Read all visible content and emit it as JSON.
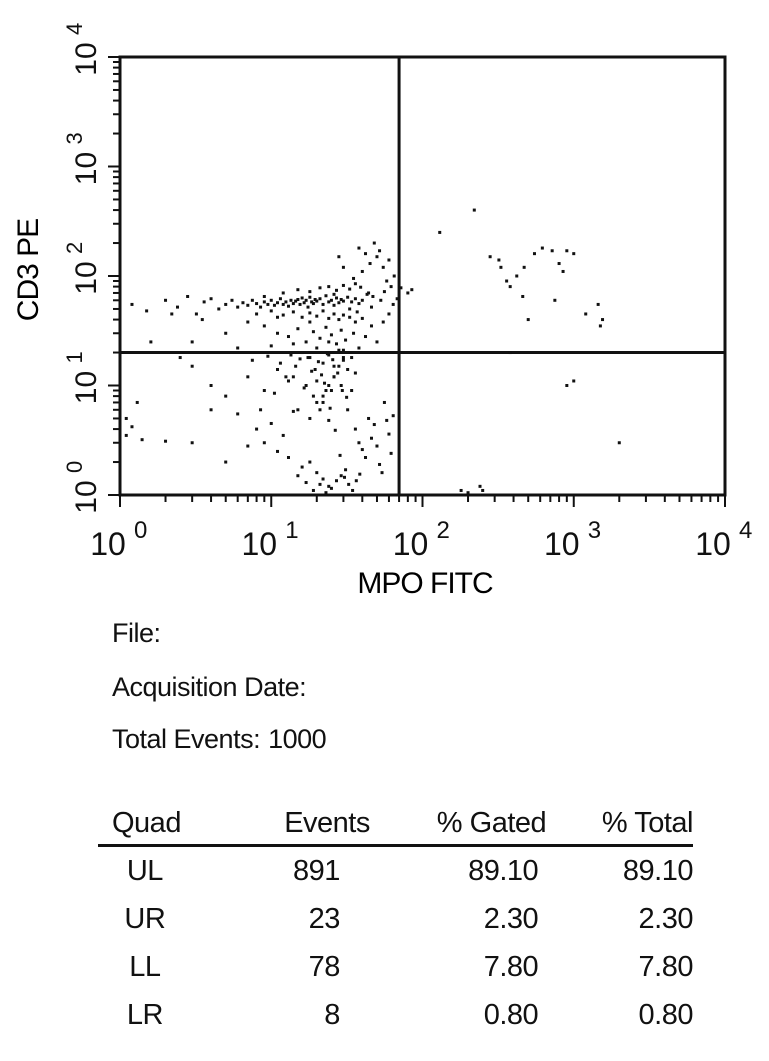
{
  "chart_data": {
    "type": "scatter",
    "xlabel": "MPO FITC",
    "ylabel": "CD3 PE",
    "x_scale": "log",
    "y_scale": "log",
    "xlim": [
      1,
      10000
    ],
    "ylim": [
      1,
      10000
    ],
    "x_ticks": [
      {
        "base": "10",
        "exp": "0"
      },
      {
        "base": "10",
        "exp": "1"
      },
      {
        "base": "10",
        "exp": "2"
      },
      {
        "base": "10",
        "exp": "3"
      },
      {
        "base": "10",
        "exp": "4"
      }
    ],
    "y_ticks": [
      {
        "base": "10",
        "exp": "0"
      },
      {
        "base": "10",
        "exp": "1"
      },
      {
        "base": "10",
        "exp": "2"
      },
      {
        "base": "10",
        "exp": "3"
      },
      {
        "base": "10",
        "exp": "4"
      }
    ],
    "quadrant_x": 70,
    "quadrant_y": 20,
    "series": [
      {
        "points": [
          [
            1.2,
            55
          ],
          [
            1.5,
            48
          ],
          [
            2,
            60
          ],
          [
            2.4,
            52
          ],
          [
            2.8,
            65
          ],
          [
            3.2,
            45
          ],
          [
            3.6,
            58
          ],
          [
            4,
            62
          ],
          [
            4.5,
            50
          ],
          [
            5,
            55
          ],
          [
            5.5,
            60
          ],
          [
            6,
            52
          ],
          [
            6.5,
            57
          ],
          [
            7,
            54
          ],
          [
            7.5,
            60
          ],
          [
            8,
            56
          ],
          [
            8.5,
            52
          ],
          [
            9,
            58
          ],
          [
            9.5,
            55
          ],
          [
            10,
            60
          ],
          [
            10.5,
            54
          ],
          [
            11,
            57
          ],
          [
            11.5,
            62
          ],
          [
            12,
            55
          ],
          [
            12.5,
            58
          ],
          [
            13,
            53
          ],
          [
            13.5,
            60
          ],
          [
            14,
            56
          ],
          [
            14.5,
            59
          ],
          [
            15,
            61
          ],
          [
            15.5,
            55
          ],
          [
            16,
            63
          ],
          [
            16.5,
            57
          ],
          [
            17,
            60
          ],
          [
            17.5,
            52
          ],
          [
            18,
            64
          ],
          [
            18.5,
            58
          ],
          [
            19,
            56
          ],
          [
            19.5,
            61
          ],
          [
            20,
            59
          ],
          [
            21,
            62
          ],
          [
            22,
            55
          ],
          [
            23,
            66
          ],
          [
            24,
            58
          ],
          [
            25,
            60
          ],
          [
            26,
            54
          ],
          [
            27,
            63
          ],
          [
            28,
            57
          ],
          [
            29,
            61
          ],
          [
            30,
            59
          ],
          [
            32,
            64
          ],
          [
            34,
            58
          ],
          [
            36,
            62
          ],
          [
            38,
            56
          ],
          [
            40,
            60
          ],
          [
            8,
            45
          ],
          [
            10,
            48
          ],
          [
            12,
            44
          ],
          [
            14,
            47
          ],
          [
            16,
            42
          ],
          [
            18,
            46
          ],
          [
            20,
            43
          ],
          [
            22,
            48
          ],
          [
            24,
            41
          ],
          [
            26,
            45
          ],
          [
            28,
            40
          ],
          [
            30,
            44
          ],
          [
            33,
            42
          ],
          [
            36,
            38
          ],
          [
            40,
            41
          ],
          [
            12,
            70
          ],
          [
            15,
            75
          ],
          [
            18,
            72
          ],
          [
            21,
            78
          ],
          [
            24,
            80
          ],
          [
            27,
            74
          ],
          [
            30,
            82
          ],
          [
            33,
            76
          ],
          [
            36,
            85
          ],
          [
            39,
            79
          ],
          [
            9,
            35
          ],
          [
            11,
            30
          ],
          [
            13,
            28
          ],
          [
            15,
            33
          ],
          [
            17,
            25
          ],
          [
            19,
            31
          ],
          [
            21,
            27
          ],
          [
            23,
            34
          ],
          [
            25,
            29
          ],
          [
            27,
            24
          ],
          [
            29,
            32
          ],
          [
            31,
            26
          ],
          [
            35,
            30
          ],
          [
            38,
            22
          ],
          [
            42,
            28
          ],
          [
            46,
            35
          ],
          [
            50,
            25
          ],
          [
            16,
            20
          ],
          [
            18,
            18
          ],
          [
            20,
            22
          ],
          [
            22,
            16
          ],
          [
            24,
            19
          ],
          [
            26,
            15
          ],
          [
            28,
            21
          ],
          [
            30,
            17
          ],
          [
            32,
            14
          ],
          [
            34,
            18
          ],
          [
            36,
            13
          ],
          [
            14,
            12
          ],
          [
            17,
            10
          ],
          [
            20,
            11
          ],
          [
            23,
            9
          ],
          [
            26,
            12
          ],
          [
            29,
            10
          ],
          [
            19,
            8
          ],
          [
            22,
            7
          ],
          [
            25,
            9
          ],
          [
            15,
            6
          ],
          [
            18,
            5
          ],
          [
            21,
            6
          ],
          [
            24,
            4.8
          ],
          [
            11,
            14
          ],
          [
            13,
            11
          ],
          [
            9,
            9
          ],
          [
            7,
            12
          ],
          [
            5,
            8
          ],
          [
            3,
            15
          ],
          [
            4,
            6
          ],
          [
            2.5,
            18
          ],
          [
            1.3,
            7
          ],
          [
            1.1,
            3.5
          ],
          [
            1.2,
            4.2
          ],
          [
            1.1,
            5
          ],
          [
            1.4,
            3.2
          ],
          [
            2,
            3.1
          ],
          [
            40,
            110
          ],
          [
            45,
            130
          ],
          [
            50,
            150
          ],
          [
            55,
            120
          ],
          [
            60,
            140
          ],
          [
            65,
            100
          ],
          [
            48,
            200
          ],
          [
            52,
            170
          ],
          [
            58,
            90
          ],
          [
            62,
            80
          ],
          [
            35,
            95
          ],
          [
            42,
            160
          ],
          [
            38,
            180
          ],
          [
            30,
            120
          ],
          [
            28,
            150
          ],
          [
            3,
            25
          ],
          [
            6,
            22
          ],
          [
            44,
            70
          ],
          [
            47,
            65
          ],
          [
            53,
            60
          ],
          [
            56,
            72
          ],
          [
            64,
            55
          ],
          [
            68,
            62
          ],
          [
            72,
            78
          ],
          [
            80,
            70
          ],
          [
            85,
            75
          ],
          [
            60,
            45
          ],
          [
            55,
            38
          ],
          [
            46,
            52
          ],
          [
            43,
            68
          ],
          [
            11,
            42
          ],
          [
            7,
            38
          ],
          [
            5,
            30
          ],
          [
            3.5,
            40
          ],
          [
            2.2,
            45
          ],
          [
            1.6,
            25
          ],
          [
            10,
            23
          ],
          [
            14,
            24
          ],
          [
            30,
            21
          ],
          [
            24,
            25
          ],
          [
            18,
            38
          ],
          [
            26,
            68
          ],
          [
            33,
            50
          ],
          [
            37,
            47
          ],
          [
            9,
            65
          ]
        ]
      },
      {
        "points": [
          [
            130,
            250
          ],
          [
            220,
            400
          ],
          [
            280,
            150
          ],
          [
            330,
            120
          ],
          [
            360,
            90
          ],
          [
            420,
            100
          ],
          [
            460,
            65
          ],
          [
            500,
            40
          ],
          [
            550,
            160
          ],
          [
            620,
            180
          ],
          [
            720,
            170
          ],
          [
            800,
            130
          ],
          [
            850,
            110
          ],
          [
            900,
            170
          ],
          [
            1000,
            160
          ],
          [
            750,
            60
          ],
          [
            1200,
            45
          ],
          [
            1450,
            55
          ],
          [
            1500,
            35
          ],
          [
            1550,
            40
          ],
          [
            380,
            80
          ],
          [
            470,
            120
          ],
          [
            320,
            140
          ]
        ]
      },
      {
        "points": [
          [
            4,
            10
          ],
          [
            6,
            5.5
          ],
          [
            8,
            4
          ],
          [
            10,
            4.5
          ],
          [
            12,
            3.5
          ],
          [
            14,
            5.8
          ],
          [
            9,
            3
          ],
          [
            11,
            2.5
          ],
          [
            13,
            2.2
          ],
          [
            16,
            1.8
          ],
          [
            18,
            2
          ],
          [
            20,
            1.6
          ],
          [
            22,
            1.4
          ],
          [
            24,
            1.2
          ],
          [
            15,
            1.5
          ],
          [
            17,
            1.3
          ],
          [
            19,
            1.1
          ],
          [
            21,
            1.25
          ],
          [
            23,
            1.05
          ],
          [
            25,
            1.15
          ],
          [
            27,
            1.35
          ],
          [
            29,
            1.5
          ],
          [
            31,
            1.7
          ],
          [
            20,
            7
          ],
          [
            22,
            8
          ],
          [
            24,
            10
          ],
          [
            26,
            12
          ],
          [
            28,
            15
          ],
          [
            30,
            18
          ],
          [
            32,
            6
          ],
          [
            34,
            9
          ],
          [
            36,
            4
          ],
          [
            38,
            3
          ],
          [
            40,
            2.6
          ],
          [
            42,
            2.2
          ],
          [
            44,
            5
          ],
          [
            46,
            3.3
          ],
          [
            48,
            4.4
          ],
          [
            50,
            2.8
          ],
          [
            52,
            1.9
          ],
          [
            54,
            1.6
          ],
          [
            56,
            7
          ],
          [
            58,
            4.8
          ],
          [
            60,
            3.6
          ],
          [
            62,
            2.4
          ],
          [
            64,
            5.3
          ],
          [
            3,
            3
          ],
          [
            5,
            2
          ],
          [
            7,
            2.8
          ],
          [
            8.5,
            6
          ],
          [
            10.5,
            8.5
          ],
          [
            12.5,
            12
          ],
          [
            14.5,
            15
          ],
          [
            16.5,
            9.5
          ],
          [
            18.5,
            13.5
          ],
          [
            20.5,
            16.5
          ],
          [
            22.5,
            10.5
          ],
          [
            24.5,
            6.2
          ],
          [
            26.5,
            3.9
          ],
          [
            28.5,
            2.3
          ],
          [
            30.5,
            1.45
          ],
          [
            32.5,
            1.25
          ],
          [
            34.5,
            1.1
          ],
          [
            36.5,
            1.35
          ],
          [
            38.5,
            1.55
          ],
          [
            7.5,
            17
          ],
          [
            9.5,
            18.5
          ],
          [
            11.5,
            16
          ],
          [
            13.5,
            19
          ],
          [
            15.5,
            17.5
          ],
          [
            17.5,
            18
          ],
          [
            19.5,
            14
          ],
          [
            21.5,
            12.5
          ],
          [
            23.5,
            19.5
          ],
          [
            25.5,
            17.2
          ],
          [
            27.5,
            13
          ],
          [
            29.5,
            9
          ],
          [
            31.5,
            7.8
          ]
        ]
      },
      {
        "points": [
          [
            180,
            1.1
          ],
          [
            200,
            1.05
          ],
          [
            240,
            1.2
          ],
          [
            250,
            1.1
          ],
          [
            900,
            10
          ],
          [
            1000,
            11
          ],
          [
            2000,
            3
          ],
          [
            380,
            20
          ]
        ]
      }
    ]
  },
  "info": {
    "file_label": "File:",
    "file_value": "",
    "date_label": "Acquisition Date:",
    "date_value": "",
    "events_label": "Total Events:",
    "events_value": "1000"
  },
  "stats": {
    "headers": [
      "Quad",
      "Events",
      "% Gated",
      "% Total"
    ],
    "rows": [
      {
        "quad": "UL",
        "events": "891",
        "gated": "89.10",
        "total": "89.10"
      },
      {
        "quad": "UR",
        "events": "23",
        "gated": "2.30",
        "total": "2.30"
      },
      {
        "quad": "LL",
        "events": "78",
        "gated": "7.80",
        "total": "7.80"
      },
      {
        "quad": "LR",
        "events": "8",
        "gated": "0.80",
        "total": "0.80"
      }
    ]
  }
}
